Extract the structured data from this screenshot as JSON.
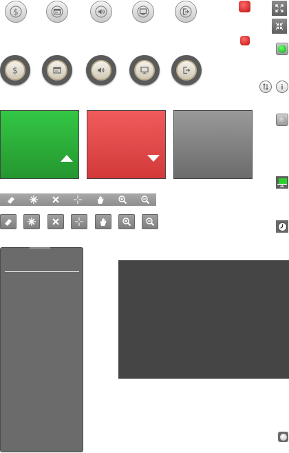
{
  "row1_buttons": [
    {
      "icon": "dollar-icon"
    },
    {
      "icon": "card-icon"
    },
    {
      "icon": "speaker-icon"
    },
    {
      "icon": "monitor-icon"
    },
    {
      "icon": "exit-icon"
    }
  ],
  "row2_buttons": [
    {
      "icon": "dollar-icon"
    },
    {
      "icon": "card-icon"
    },
    {
      "icon": "speaker-icon"
    },
    {
      "icon": "monitor-icon"
    },
    {
      "icon": "exit-icon"
    }
  ],
  "tiles": [
    {
      "color": "#2fba3f",
      "indicator": "up"
    },
    {
      "color": "#e64a4a",
      "indicator": "down"
    },
    {
      "color": "#808080",
      "indicator": "none"
    }
  ],
  "toolbar_icons": [
    "eraser-icon",
    "no-crosshair-icon",
    "close-icon",
    "crosshair-icon",
    "hand-icon",
    "zoom-in-icon",
    "zoom-out-icon"
  ],
  "status": {
    "online_color": "#22c42e",
    "offline_color": "#9a9a9a"
  },
  "colors": {
    "red_indicator": "#d41f1f",
    "dark_panel": "#454545",
    "side_panel": "#6b6b6b"
  }
}
